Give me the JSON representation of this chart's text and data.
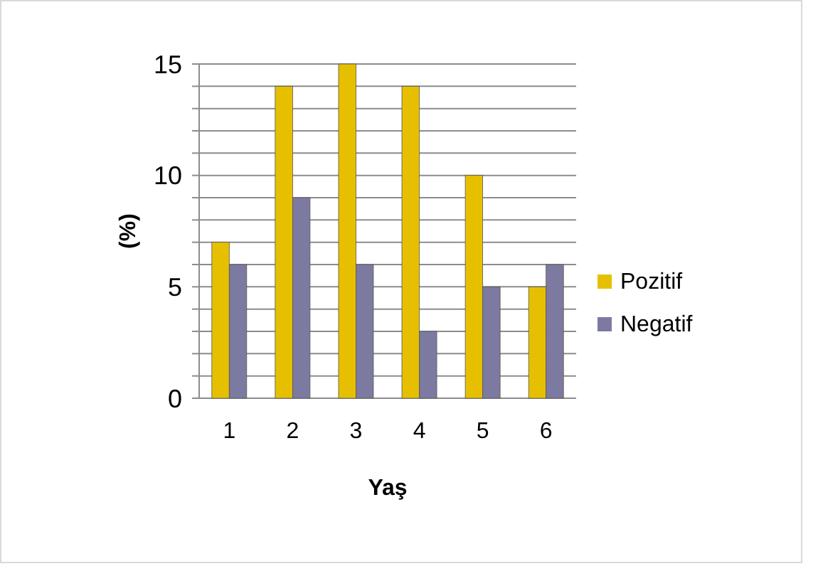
{
  "chart_data": {
    "type": "bar",
    "xlabel": "Yaş",
    "ylabel": "(%)",
    "categories": [
      "1",
      "2",
      "3",
      "4",
      "5",
      "6"
    ],
    "series": [
      {
        "name": "Pozitif",
        "color": "#e6c000",
        "values": [
          7,
          14,
          15,
          14,
          10,
          5
        ]
      },
      {
        "name": "Negatif",
        "color": "#7c7aa0",
        "values": [
          6,
          9,
          6,
          3,
          5,
          6
        ]
      }
    ],
    "ylim": [
      0,
      15
    ],
    "yticks": [
      0,
      {
        "value": 1,
        "label": null
      },
      {
        "value": 2,
        "label": null
      },
      {
        "value": 3,
        "label": null
      },
      {
        "value": 4,
        "label": null
      },
      5,
      {
        "value": 6,
        "label": null
      },
      {
        "value": 7,
        "label": null
      },
      {
        "value": 8,
        "label": null
      },
      {
        "value": 9,
        "label": null
      },
      10,
      {
        "value": 11,
        "label": null
      },
      {
        "value": 12,
        "label": null
      },
      {
        "value": 13,
        "label": null
      },
      {
        "value": 14,
        "label": null
      },
      15
    ],
    "grid": true,
    "legend": "right"
  }
}
